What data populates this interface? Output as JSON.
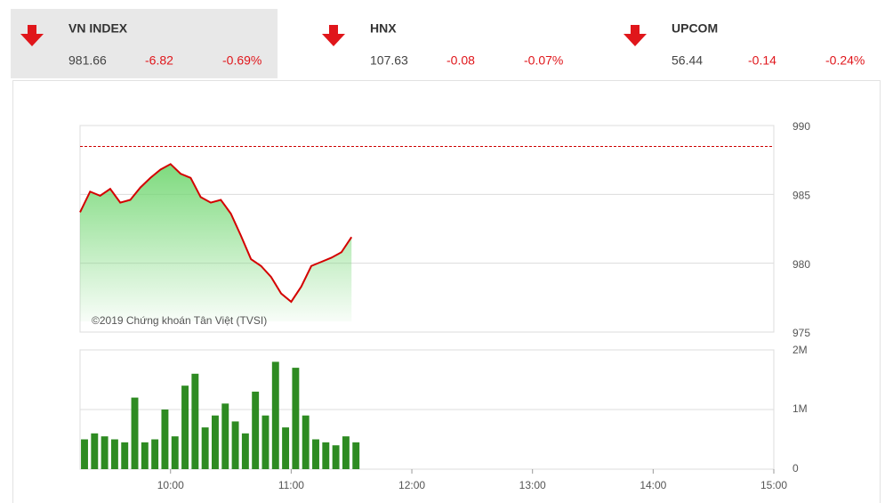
{
  "indices": [
    {
      "name": "VN INDEX",
      "value": "981.66",
      "change": "-6.82",
      "percent": "-0.69%"
    },
    {
      "name": "HNX",
      "value": "107.63",
      "change": "-0.08",
      "percent": "-0.07%"
    },
    {
      "name": "UPCOM",
      "value": "56.44",
      "change": "-0.14",
      "percent": "-0.24%"
    }
  ],
  "chart_data": [
    {
      "type": "line",
      "annotation": "©2019 Chứng khoán Tân Việt (TVSI)",
      "x": [
        "09:15",
        "09:20",
        "09:25",
        "09:30",
        "09:35",
        "09:40",
        "09:45",
        "09:50",
        "09:55",
        "10:00",
        "10:05",
        "10:10",
        "10:15",
        "10:20",
        "10:25",
        "10:30",
        "10:35",
        "10:40",
        "10:45",
        "10:50",
        "10:55",
        "11:00",
        "11:05",
        "11:10",
        "11:15",
        "11:20",
        "11:25",
        "11:30"
      ],
      "series": [
        {
          "color": "#d40000",
          "values": [
            983.7,
            985.2,
            984.9,
            985.4,
            984.4,
            984.6,
            985.5,
            986.2,
            986.8,
            987.2,
            986.5,
            986.2,
            984.8,
            984.4,
            984.6,
            983.6,
            982.0,
            980.3,
            979.8,
            979.0,
            977.8,
            977.2,
            978.3,
            979.8,
            980.1,
            980.4,
            980.8,
            981.9
          ]
        }
      ],
      "reference": 988.48,
      "xlim": [
        "09:15",
        "15:00"
      ],
      "ylim": [
        975,
        990
      ],
      "yticks": [
        975,
        980,
        985,
        990
      ],
      "grid": true
    },
    {
      "type": "bar",
      "x": [
        "09:15",
        "09:20",
        "09:25",
        "09:30",
        "09:35",
        "09:40",
        "09:45",
        "09:50",
        "09:55",
        "10:00",
        "10:05",
        "10:10",
        "10:15",
        "10:20",
        "10:25",
        "10:30",
        "10:35",
        "10:40",
        "10:45",
        "10:50",
        "10:55",
        "11:00",
        "11:05",
        "11:10",
        "11:15",
        "11:20",
        "11:25",
        "11:30"
      ],
      "color": "#2e8b22",
      "values": [
        500000,
        600000,
        550000,
        500000,
        450000,
        1200000,
        450000,
        500000,
        1000000,
        550000,
        1400000,
        1600000,
        700000,
        900000,
        1100000,
        800000,
        600000,
        1300000,
        900000,
        1800000,
        700000,
        1700000,
        900000,
        500000,
        450000,
        400000,
        550000,
        450000
      ],
      "xlim": [
        "09:15",
        "15:00"
      ],
      "xticks": [
        "10:00",
        "11:00",
        "12:00",
        "13:00",
        "14:00",
        "15:00"
      ],
      "ylim": [
        0,
        2000000
      ],
      "yticks": [
        0,
        {
          "value": 1000000,
          "label": "1M"
        },
        {
          "value": 2000000,
          "label": "2M"
        }
      ],
      "grid": true
    }
  ]
}
